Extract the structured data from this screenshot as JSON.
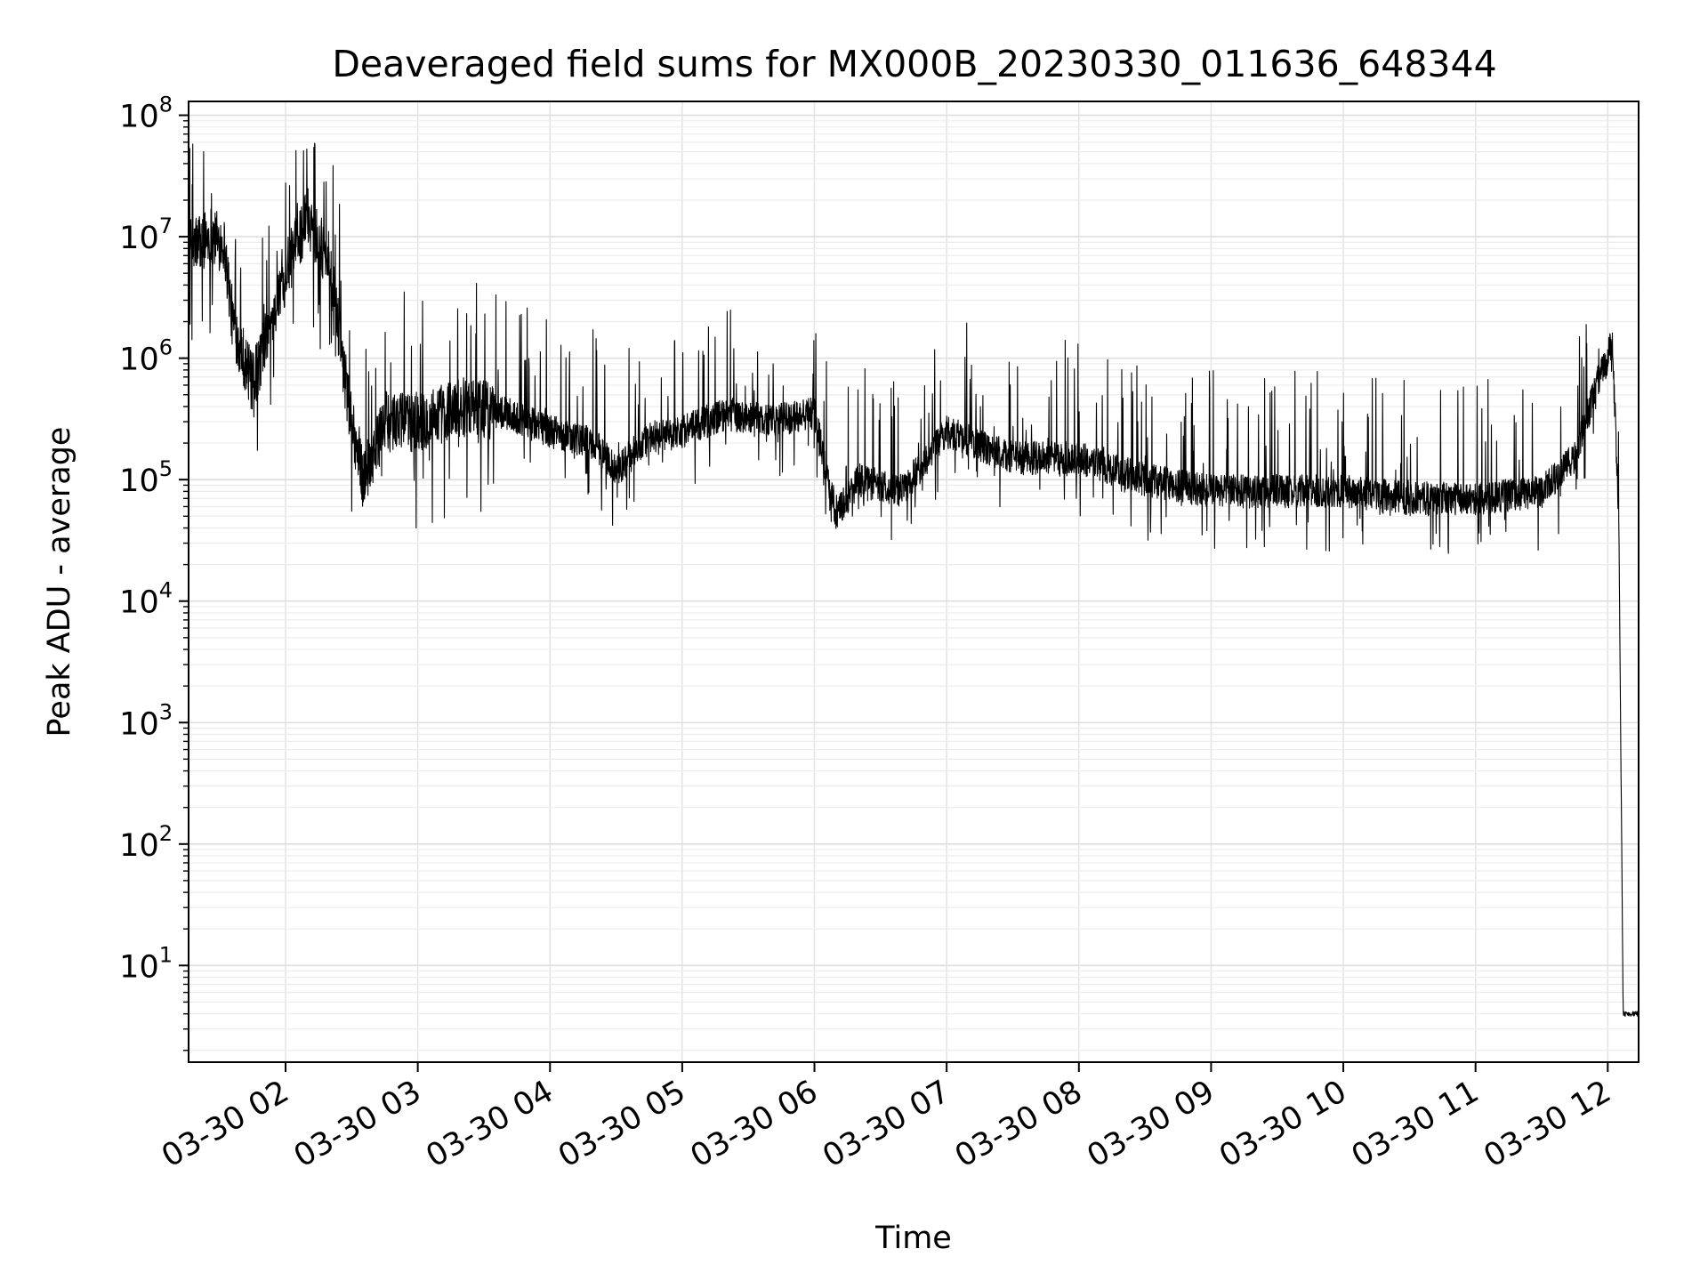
{
  "chart_data": {
    "type": "line",
    "title": "Deaveraged field sums for MX000B_20230330_011636_648344",
    "xlabel": "Time",
    "ylabel": "Peak ADU - average",
    "yscale": "log",
    "ylim": [
      1.6,
      130000000
    ],
    "xlim": [
      "03-30 01:16",
      "03-30 12:14"
    ],
    "grid": true,
    "line_color": "#000000",
    "x_ticks": [
      "03-30 02",
      "03-30 03",
      "03-30 04",
      "03-30 05",
      "03-30 06",
      "03-30 07",
      "03-30 08",
      "03-30 09",
      "03-30 10",
      "03-30 11",
      "03-30 12"
    ],
    "y_ticks": [
      {
        "base": "10",
        "exp": "1",
        "value": 10
      },
      {
        "base": "10",
        "exp": "2",
        "value": 100
      },
      {
        "base": "10",
        "exp": "3",
        "value": 1000
      },
      {
        "base": "10",
        "exp": "4",
        "value": 10000
      },
      {
        "base": "10",
        "exp": "5",
        "value": 100000
      },
      {
        "base": "10",
        "exp": "6",
        "value": 1000000
      },
      {
        "base": "10",
        "exp": "7",
        "value": 10000000
      },
      {
        "base": "10",
        "exp": "8",
        "value": 100000000
      }
    ],
    "series": [
      {
        "x": [
          "03-30 01:16",
          "03-30 01:25",
          "03-30 01:32",
          "03-30 01:36",
          "03-30 01:45",
          "03-30 02:00",
          "03-30 02:10",
          "03-30 02:20",
          "03-30 02:28",
          "03-30 02:35",
          "03-30 02:45",
          "03-30 03:00",
          "03-30 03:20",
          "03-30 03:40",
          "03-30 04:00",
          "03-30 04:20",
          "03-30 04:30",
          "03-30 04:45",
          "03-30 05:00",
          "03-30 05:20",
          "03-30 05:40",
          "03-30 06:00",
          "03-30 06:10",
          "03-30 06:20",
          "03-30 06:40",
          "03-30 07:00",
          "03-30 07:30",
          "03-30 08:00",
          "03-30 08:30",
          "03-30 09:00",
          "03-30 09:30",
          "03-30 10:00",
          "03-30 10:30",
          "03-30 11:00",
          "03-30 11:30",
          "03-30 11:45",
          "03-30 11:55",
          "03-30 12:00",
          "03-30 12:02",
          "03-30 12:05",
          "03-30 12:07",
          "03-30 12:14"
        ],
        "y": [
          8000000,
          10000000,
          9000000,
          2000000,
          600000,
          5000000,
          15000000,
          6000000,
          500000,
          100000,
          300000,
          300000,
          400000,
          350000,
          250000,
          200000,
          120000,
          220000,
          250000,
          350000,
          300000,
          350000,
          50000,
          100000,
          80000,
          250000,
          150000,
          150000,
          100000,
          80000,
          80000,
          80000,
          70000,
          70000,
          80000,
          150000,
          600000,
          1000000,
          1500000,
          50000,
          4,
          4
        ],
        "spike_highs": [
          60000000,
          55000000,
          40000000,
          35000000,
          7000000,
          1300000,
          1000000,
          800000,
          800000,
          800000,
          800000,
          3000000
        ],
        "spike_lows": [
          55000,
          60000,
          20000,
          22000,
          30000,
          11000,
          35000,
          22000,
          25000,
          40000,
          28000,
          35000
        ]
      }
    ]
  }
}
